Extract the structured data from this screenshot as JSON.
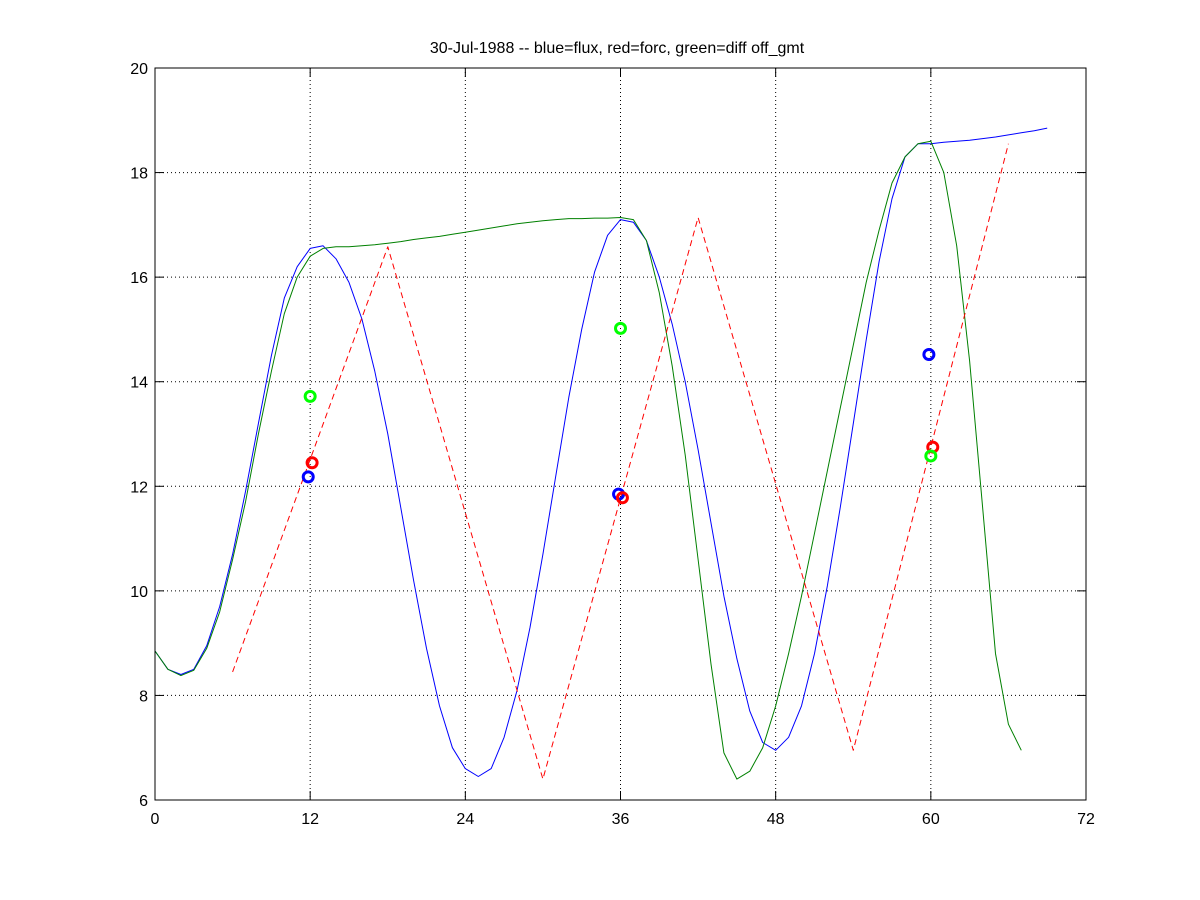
{
  "chart_data": {
    "type": "line",
    "title": "30-Jul-1988 -- blue=flux, red=forc, green=diff off_gmt",
    "xlabel": "",
    "ylabel": "",
    "xlim": [
      0,
      72
    ],
    "ylim": [
      6,
      20
    ],
    "xticks": [
      0,
      12,
      24,
      36,
      48,
      60,
      72
    ],
    "yticks": [
      6,
      8,
      10,
      12,
      14,
      16,
      18,
      20
    ],
    "grid": true,
    "colors": {
      "blue": "#0000ff",
      "red": "#ff0000",
      "green": "#008000",
      "bright_green": "#00ff00"
    },
    "series": [
      {
        "color": "#0000ff",
        "style": "solid",
        "points": [
          [
            0,
            8.85
          ],
          [
            1,
            8.5
          ],
          [
            2,
            8.4
          ],
          [
            3,
            8.5
          ],
          [
            4,
            8.95
          ],
          [
            5,
            9.7
          ],
          [
            6,
            10.7
          ],
          [
            7,
            11.9
          ],
          [
            8,
            13.2
          ],
          [
            9,
            14.5
          ],
          [
            10,
            15.6
          ],
          [
            11,
            16.2
          ],
          [
            12,
            16.55
          ],
          [
            13,
            16.6
          ],
          [
            14,
            16.35
          ],
          [
            15,
            15.9
          ],
          [
            16,
            15.2
          ],
          [
            17,
            14.2
          ],
          [
            18,
            13.0
          ],
          [
            19,
            11.6
          ],
          [
            20,
            10.2
          ],
          [
            21,
            8.9
          ],
          [
            22,
            7.8
          ],
          [
            23,
            7.0
          ],
          [
            24,
            6.6
          ],
          [
            25,
            6.45
          ],
          [
            26,
            6.6
          ],
          [
            27,
            7.2
          ],
          [
            28,
            8.1
          ],
          [
            29,
            9.3
          ],
          [
            30,
            10.7
          ],
          [
            31,
            12.2
          ],
          [
            32,
            13.7
          ],
          [
            33,
            15.0
          ],
          [
            34,
            16.1
          ],
          [
            35,
            16.8
          ],
          [
            36,
            17.1
          ],
          [
            37,
            17.05
          ],
          [
            38,
            16.7
          ],
          [
            39,
            16.0
          ],
          [
            40,
            15.1
          ],
          [
            41,
            14.0
          ],
          [
            42,
            12.7
          ],
          [
            43,
            11.3
          ],
          [
            44,
            9.9
          ],
          [
            45,
            8.7
          ],
          [
            46,
            7.7
          ],
          [
            47,
            7.1
          ],
          [
            48,
            6.95
          ],
          [
            49,
            7.2
          ],
          [
            50,
            7.8
          ],
          [
            51,
            8.8
          ],
          [
            52,
            10.1
          ],
          [
            53,
            11.6
          ],
          [
            54,
            13.2
          ],
          [
            55,
            14.8
          ],
          [
            56,
            16.3
          ],
          [
            57,
            17.5
          ],
          [
            58,
            18.3
          ],
          [
            59,
            18.55
          ],
          [
            60,
            18.55
          ],
          [
            61,
            18.58
          ],
          [
            62,
            18.6
          ],
          [
            63,
            18.62
          ],
          [
            64,
            18.65
          ],
          [
            65,
            18.68
          ],
          [
            66,
            18.72
          ],
          [
            67,
            18.76
          ],
          [
            68,
            18.8
          ],
          [
            69,
            18.85
          ]
        ]
      },
      {
        "color": "#008000",
        "style": "solid",
        "points": [
          [
            0,
            8.85
          ],
          [
            1,
            8.5
          ],
          [
            2,
            8.38
          ],
          [
            3,
            8.48
          ],
          [
            4,
            8.9
          ],
          [
            5,
            9.6
          ],
          [
            6,
            10.6
          ],
          [
            7,
            11.7
          ],
          [
            8,
            13.0
          ],
          [
            9,
            14.2
          ],
          [
            10,
            15.3
          ],
          [
            11,
            16.0
          ],
          [
            12,
            16.4
          ],
          [
            13,
            16.55
          ],
          [
            14,
            16.58
          ],
          [
            15,
            16.58
          ],
          [
            16,
            16.6
          ],
          [
            17,
            16.62
          ],
          [
            18,
            16.65
          ],
          [
            19,
            16.68
          ],
          [
            20,
            16.72
          ],
          [
            21,
            16.75
          ],
          [
            22,
            16.78
          ],
          [
            23,
            16.82
          ],
          [
            24,
            16.86
          ],
          [
            25,
            16.9
          ],
          [
            26,
            16.94
          ],
          [
            27,
            16.98
          ],
          [
            28,
            17.02
          ],
          [
            29,
            17.05
          ],
          [
            30,
            17.08
          ],
          [
            31,
            17.1
          ],
          [
            32,
            17.12
          ],
          [
            33,
            17.12
          ],
          [
            34,
            17.13
          ],
          [
            35,
            17.13
          ],
          [
            36,
            17.14
          ],
          [
            37,
            17.1
          ],
          [
            38,
            16.7
          ],
          [
            39,
            15.7
          ],
          [
            40,
            14.3
          ],
          [
            41,
            12.6
          ],
          [
            42,
            10.6
          ],
          [
            43,
            8.6
          ],
          [
            44,
            6.9
          ],
          [
            45,
            6.4
          ],
          [
            46,
            6.55
          ],
          [
            47,
            7.0
          ],
          [
            48,
            7.8
          ],
          [
            49,
            8.8
          ],
          [
            50,
            9.9
          ],
          [
            51,
            11.1
          ],
          [
            52,
            12.3
          ],
          [
            53,
            13.5
          ],
          [
            54,
            14.7
          ],
          [
            55,
            15.9
          ],
          [
            56,
            16.9
          ],
          [
            57,
            17.8
          ],
          [
            58,
            18.3
          ],
          [
            59,
            18.55
          ],
          [
            60,
            18.6
          ],
          [
            61,
            18.0
          ],
          [
            62,
            16.6
          ],
          [
            63,
            14.4
          ],
          [
            64,
            11.6
          ],
          [
            65,
            8.8
          ],
          [
            66,
            7.45
          ],
          [
            67,
            6.95
          ]
        ]
      },
      {
        "color": "#ff0000",
        "style": "dashed",
        "points": [
          [
            6,
            8.45
          ],
          [
            18,
            16.58
          ],
          [
            30,
            6.4
          ],
          [
            42,
            17.14
          ],
          [
            54,
            6.95
          ],
          [
            66,
            18.55
          ]
        ]
      }
    ],
    "markers": [
      {
        "x": 11.85,
        "y": 12.18,
        "color": "#0000ff"
      },
      {
        "x": 12.15,
        "y": 12.45,
        "color": "#ff0000"
      },
      {
        "x": 12.0,
        "y": 13.72,
        "color": "#00ff00"
      },
      {
        "x": 35.85,
        "y": 11.85,
        "color": "#0000ff"
      },
      {
        "x": 36.15,
        "y": 11.78,
        "color": "#ff0000"
      },
      {
        "x": 36.0,
        "y": 15.02,
        "color": "#00ff00"
      },
      {
        "x": 59.85,
        "y": 14.52,
        "color": "#0000ff"
      },
      {
        "x": 60.15,
        "y": 12.75,
        "color": "#ff0000"
      },
      {
        "x": 60.0,
        "y": 12.58,
        "color": "#00ff00"
      }
    ]
  }
}
